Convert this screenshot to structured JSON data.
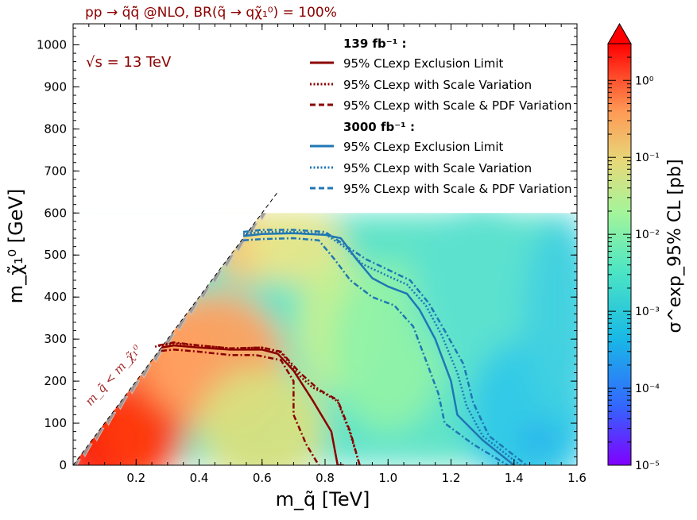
{
  "chart_data": {
    "type": "heatmap",
    "title": "pp → q̃q̃̄ @NLO, BR(q̃ → qχ̃₁⁰) = 100%",
    "annotation_energy": "√s = 13 TeV",
    "annotation_diagonal": "m_q̃ < m_χ̃₁⁰",
    "xlabel": "m_q̃ [TeV]",
    "ylabel": "m_χ̃₁⁰ [GeV]",
    "xlim": [
      0.0,
      1.6
    ],
    "ylim": [
      0,
      1050
    ],
    "x_ticks": [
      0.2,
      0.4,
      0.6,
      0.8,
      1.0,
      1.2,
      1.4,
      1.6
    ],
    "x_tick_labels": [
      "0.2",
      "0.4",
      "0.6",
      "0.8",
      "1.0",
      "1.2",
      "1.4",
      "1.6"
    ],
    "y_ticks": [
      0,
      100,
      200,
      300,
      400,
      500,
      600,
      700,
      800,
      900,
      1000
    ],
    "y_tick_labels": [
      "0",
      "100",
      "200",
      "300",
      "400",
      "500",
      "600",
      "700",
      "800",
      "900",
      "1000"
    ],
    "heatmap_region": {
      "x": [
        0.0,
        1.6
      ],
      "y": [
        0,
        600
      ]
    },
    "colorbar": {
      "label": "σ^exp_95% CL [pb]",
      "scale": "log",
      "range": [
        1e-05,
        3
      ],
      "ticks": [
        1e-05,
        0.0001,
        0.001,
        0.01,
        0.1,
        1
      ],
      "tick_labels": [
        "10⁻⁵",
        "10⁻⁴",
        "10⁻³",
        "10⁻²",
        "10⁻¹",
        "10⁰"
      ],
      "extend": "max"
    },
    "legend": {
      "header_139": "139 fb⁻¹ :",
      "header_3000": "3000 fb⁻¹ :",
      "entries": [
        {
          "label": "95% CLexp Exclusion Limit",
          "style": "solid",
          "group": "139"
        },
        {
          "label": "95% CLexp with Scale Variation",
          "style": "dotted",
          "group": "139"
        },
        {
          "label": "95% CLexp with Scale & PDF Variation",
          "style": "dashed",
          "group": "139"
        },
        {
          "label": "95% CLexp Exclusion Limit",
          "style": "solid",
          "group": "3000"
        },
        {
          "label": "95% CLexp with Scale Variation",
          "style": "dotted",
          "group": "3000"
        },
        {
          "label": "95% CLexp with Scale & PDF Variation",
          "style": "dashed",
          "group": "3000"
        }
      ]
    },
    "colors": {
      "lumi_139": "#8b0000",
      "lumi_3000": "#1f77b4",
      "title": "#8b0000"
    },
    "series": [
      {
        "name": "139 fb-1 exclusion limit",
        "style": "solid",
        "lumi": "139",
        "x": [
          0.28,
          0.32,
          0.4,
          0.5,
          0.6,
          0.65,
          0.7,
          0.76,
          0.82,
          0.84,
          0.86
        ],
        "y": [
          280,
          285,
          280,
          275,
          275,
          265,
          225,
          155,
          80,
          0,
          0
        ]
      },
      {
        "name": "139 fb-1 scale variation",
        "style": "dotted",
        "lumi": "139",
        "x": [
          0.26,
          0.32,
          0.4,
          0.5,
          0.6,
          0.66,
          0.72,
          0.76,
          0.8,
          0.84,
          0.88,
          0.91
        ],
        "y": [
          282,
          290,
          285,
          278,
          280,
          268,
          212,
          185,
          170,
          152,
          75,
          0
        ]
      },
      {
        "name": "139 fb-1 scale+PDF variation upper",
        "style": "dashdot",
        "lumi": "139",
        "x": [
          0.27,
          0.32,
          0.4,
          0.5,
          0.6,
          0.66,
          0.72,
          0.78,
          0.84,
          0.88,
          0.91
        ],
        "y": [
          285,
          292,
          285,
          278,
          280,
          270,
          220,
          180,
          155,
          80,
          0
        ]
      },
      {
        "name": "139 fb-1 scale+PDF variation lower",
        "style": "dashdot",
        "lumi": "139",
        "x": [
          0.28,
          0.32,
          0.4,
          0.5,
          0.58,
          0.66,
          0.7,
          0.7,
          0.74,
          0.78
        ],
        "y": [
          272,
          275,
          270,
          262,
          262,
          250,
          200,
          120,
          50,
          0
        ]
      },
      {
        "name": "3000 fb-1 exclusion limit",
        "style": "solid",
        "lumi": "3000",
        "x": [
          0.54,
          0.6,
          0.7,
          0.8,
          0.85,
          0.9,
          0.95,
          1.0,
          1.06,
          1.1,
          1.15,
          1.2,
          1.22,
          1.3,
          1.4
        ],
        "y": [
          545,
          550,
          552,
          548,
          540,
          490,
          445,
          425,
          408,
          370,
          300,
          200,
          120,
          60,
          0
        ]
      },
      {
        "name": "3000 fb-1 scale variation",
        "style": "dotted",
        "lumi": "3000",
        "x": [
          0.54,
          0.6,
          0.7,
          0.8,
          0.86,
          0.92,
          1.0,
          1.06,
          1.12,
          1.17,
          1.22,
          1.25,
          1.3,
          1.42
        ],
        "y": [
          550,
          555,
          555,
          550,
          520,
          478,
          450,
          430,
          380,
          310,
          220,
          140,
          70,
          0
        ]
      },
      {
        "name": "3000 fb-1 scale+PDF variation upper",
        "style": "dashdot",
        "lumi": "3000",
        "x": [
          0.54,
          0.6,
          0.7,
          0.8,
          0.86,
          0.93,
          1.0,
          1.07,
          1.13,
          1.18,
          1.24,
          1.27,
          1.32,
          1.44
        ],
        "y": [
          555,
          560,
          560,
          555,
          525,
          490,
          465,
          440,
          385,
          320,
          240,
          150,
          70,
          0
        ]
      },
      {
        "name": "3000 fb-1 scale+PDF variation lower",
        "style": "dashdot",
        "lumi": "3000",
        "x": [
          0.54,
          0.6,
          0.7,
          0.78,
          0.83,
          0.88,
          0.95,
          1.02,
          1.08,
          1.13,
          1.16,
          1.18,
          1.27,
          1.38
        ],
        "y": [
          535,
          538,
          540,
          535,
          490,
          440,
          400,
          380,
          330,
          230,
          170,
          100,
          50,
          0
        ]
      }
    ]
  }
}
